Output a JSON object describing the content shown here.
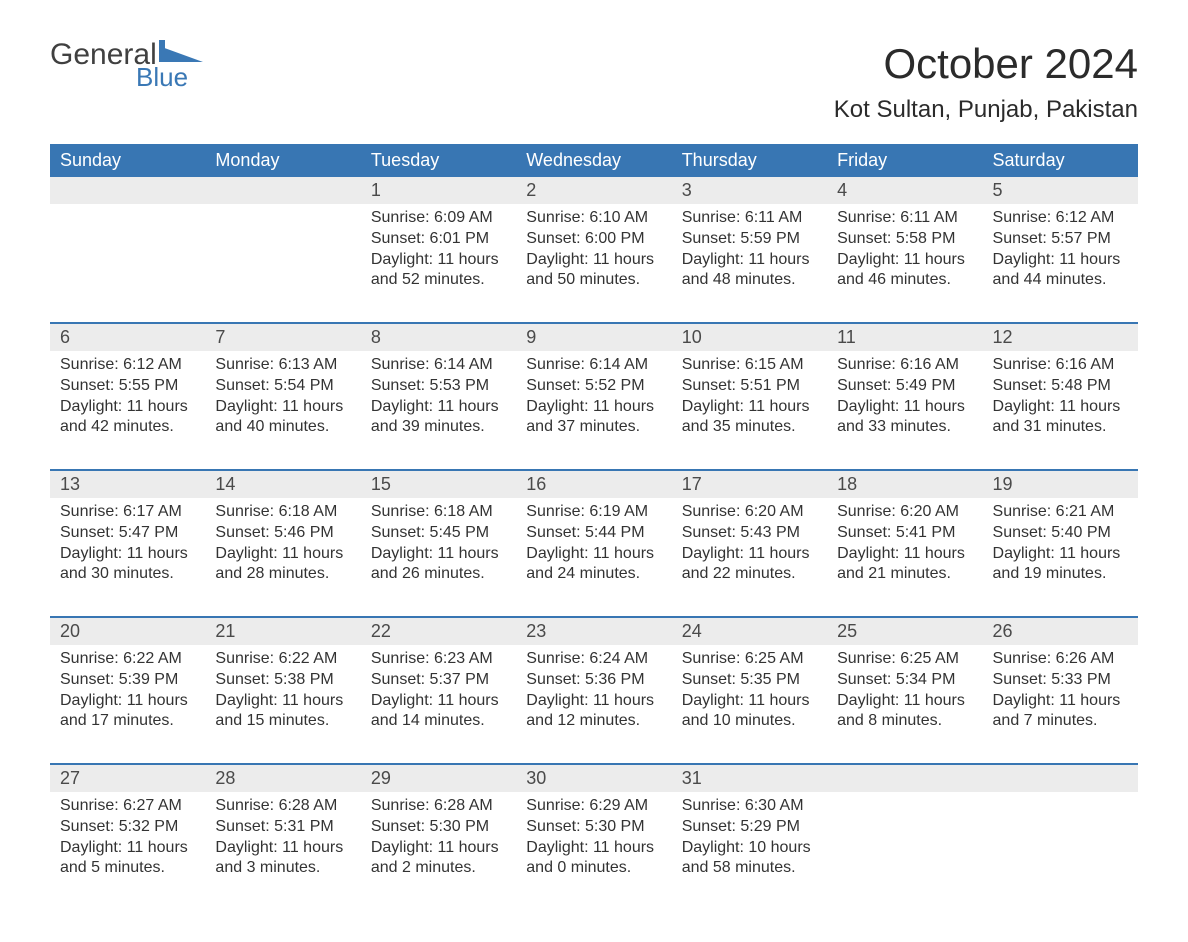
{
  "logo": {
    "text1": "General",
    "text2": "Blue",
    "icon_color": "#3a78b5"
  },
  "title": "October 2024",
  "location": "Kot Sultan, Punjab, Pakistan",
  "colors": {
    "header_bg": "#3876b3",
    "header_text": "#ffffff",
    "daynum_bg": "#ececec",
    "week_border": "#3876b3",
    "body_text": "#333333",
    "page_bg": "#ffffff"
  },
  "day_names": [
    "Sunday",
    "Monday",
    "Tuesday",
    "Wednesday",
    "Thursday",
    "Friday",
    "Saturday"
  ],
  "weeks": [
    [
      {
        "date": "",
        "sunrise": "",
        "sunset": "",
        "daylight1": "",
        "daylight2": ""
      },
      {
        "date": "",
        "sunrise": "",
        "sunset": "",
        "daylight1": "",
        "daylight2": ""
      },
      {
        "date": "1",
        "sunrise": "Sunrise: 6:09 AM",
        "sunset": "Sunset: 6:01 PM",
        "daylight1": "Daylight: 11 hours",
        "daylight2": "and 52 minutes."
      },
      {
        "date": "2",
        "sunrise": "Sunrise: 6:10 AM",
        "sunset": "Sunset: 6:00 PM",
        "daylight1": "Daylight: 11 hours",
        "daylight2": "and 50 minutes."
      },
      {
        "date": "3",
        "sunrise": "Sunrise: 6:11 AM",
        "sunset": "Sunset: 5:59 PM",
        "daylight1": "Daylight: 11 hours",
        "daylight2": "and 48 minutes."
      },
      {
        "date": "4",
        "sunrise": "Sunrise: 6:11 AM",
        "sunset": "Sunset: 5:58 PM",
        "daylight1": "Daylight: 11 hours",
        "daylight2": "and 46 minutes."
      },
      {
        "date": "5",
        "sunrise": "Sunrise: 6:12 AM",
        "sunset": "Sunset: 5:57 PM",
        "daylight1": "Daylight: 11 hours",
        "daylight2": "and 44 minutes."
      }
    ],
    [
      {
        "date": "6",
        "sunrise": "Sunrise: 6:12 AM",
        "sunset": "Sunset: 5:55 PM",
        "daylight1": "Daylight: 11 hours",
        "daylight2": "and 42 minutes."
      },
      {
        "date": "7",
        "sunrise": "Sunrise: 6:13 AM",
        "sunset": "Sunset: 5:54 PM",
        "daylight1": "Daylight: 11 hours",
        "daylight2": "and 40 minutes."
      },
      {
        "date": "8",
        "sunrise": "Sunrise: 6:14 AM",
        "sunset": "Sunset: 5:53 PM",
        "daylight1": "Daylight: 11 hours",
        "daylight2": "and 39 minutes."
      },
      {
        "date": "9",
        "sunrise": "Sunrise: 6:14 AM",
        "sunset": "Sunset: 5:52 PM",
        "daylight1": "Daylight: 11 hours",
        "daylight2": "and 37 minutes."
      },
      {
        "date": "10",
        "sunrise": "Sunrise: 6:15 AM",
        "sunset": "Sunset: 5:51 PM",
        "daylight1": "Daylight: 11 hours",
        "daylight2": "and 35 minutes."
      },
      {
        "date": "11",
        "sunrise": "Sunrise: 6:16 AM",
        "sunset": "Sunset: 5:49 PM",
        "daylight1": "Daylight: 11 hours",
        "daylight2": "and 33 minutes."
      },
      {
        "date": "12",
        "sunrise": "Sunrise: 6:16 AM",
        "sunset": "Sunset: 5:48 PM",
        "daylight1": "Daylight: 11 hours",
        "daylight2": "and 31 minutes."
      }
    ],
    [
      {
        "date": "13",
        "sunrise": "Sunrise: 6:17 AM",
        "sunset": "Sunset: 5:47 PM",
        "daylight1": "Daylight: 11 hours",
        "daylight2": "and 30 minutes."
      },
      {
        "date": "14",
        "sunrise": "Sunrise: 6:18 AM",
        "sunset": "Sunset: 5:46 PM",
        "daylight1": "Daylight: 11 hours",
        "daylight2": "and 28 minutes."
      },
      {
        "date": "15",
        "sunrise": "Sunrise: 6:18 AM",
        "sunset": "Sunset: 5:45 PM",
        "daylight1": "Daylight: 11 hours",
        "daylight2": "and 26 minutes."
      },
      {
        "date": "16",
        "sunrise": "Sunrise: 6:19 AM",
        "sunset": "Sunset: 5:44 PM",
        "daylight1": "Daylight: 11 hours",
        "daylight2": "and 24 minutes."
      },
      {
        "date": "17",
        "sunrise": "Sunrise: 6:20 AM",
        "sunset": "Sunset: 5:43 PM",
        "daylight1": "Daylight: 11 hours",
        "daylight2": "and 22 minutes."
      },
      {
        "date": "18",
        "sunrise": "Sunrise: 6:20 AM",
        "sunset": "Sunset: 5:41 PM",
        "daylight1": "Daylight: 11 hours",
        "daylight2": "and 21 minutes."
      },
      {
        "date": "19",
        "sunrise": "Sunrise: 6:21 AM",
        "sunset": "Sunset: 5:40 PM",
        "daylight1": "Daylight: 11 hours",
        "daylight2": "and 19 minutes."
      }
    ],
    [
      {
        "date": "20",
        "sunrise": "Sunrise: 6:22 AM",
        "sunset": "Sunset: 5:39 PM",
        "daylight1": "Daylight: 11 hours",
        "daylight2": "and 17 minutes."
      },
      {
        "date": "21",
        "sunrise": "Sunrise: 6:22 AM",
        "sunset": "Sunset: 5:38 PM",
        "daylight1": "Daylight: 11 hours",
        "daylight2": "and 15 minutes."
      },
      {
        "date": "22",
        "sunrise": "Sunrise: 6:23 AM",
        "sunset": "Sunset: 5:37 PM",
        "daylight1": "Daylight: 11 hours",
        "daylight2": "and 14 minutes."
      },
      {
        "date": "23",
        "sunrise": "Sunrise: 6:24 AM",
        "sunset": "Sunset: 5:36 PM",
        "daylight1": "Daylight: 11 hours",
        "daylight2": "and 12 minutes."
      },
      {
        "date": "24",
        "sunrise": "Sunrise: 6:25 AM",
        "sunset": "Sunset: 5:35 PM",
        "daylight1": "Daylight: 11 hours",
        "daylight2": "and 10 minutes."
      },
      {
        "date": "25",
        "sunrise": "Sunrise: 6:25 AM",
        "sunset": "Sunset: 5:34 PM",
        "daylight1": "Daylight: 11 hours",
        "daylight2": "and 8 minutes."
      },
      {
        "date": "26",
        "sunrise": "Sunrise: 6:26 AM",
        "sunset": "Sunset: 5:33 PM",
        "daylight1": "Daylight: 11 hours",
        "daylight2": "and 7 minutes."
      }
    ],
    [
      {
        "date": "27",
        "sunrise": "Sunrise: 6:27 AM",
        "sunset": "Sunset: 5:32 PM",
        "daylight1": "Daylight: 11 hours",
        "daylight2": "and 5 minutes."
      },
      {
        "date": "28",
        "sunrise": "Sunrise: 6:28 AM",
        "sunset": "Sunset: 5:31 PM",
        "daylight1": "Daylight: 11 hours",
        "daylight2": "and 3 minutes."
      },
      {
        "date": "29",
        "sunrise": "Sunrise: 6:28 AM",
        "sunset": "Sunset: 5:30 PM",
        "daylight1": "Daylight: 11 hours",
        "daylight2": "and 2 minutes."
      },
      {
        "date": "30",
        "sunrise": "Sunrise: 6:29 AM",
        "sunset": "Sunset: 5:30 PM",
        "daylight1": "Daylight: 11 hours",
        "daylight2": "and 0 minutes."
      },
      {
        "date": "31",
        "sunrise": "Sunrise: 6:30 AM",
        "sunset": "Sunset: 5:29 PM",
        "daylight1": "Daylight: 10 hours",
        "daylight2": "and 58 minutes."
      },
      {
        "date": "",
        "sunrise": "",
        "sunset": "",
        "daylight1": "",
        "daylight2": ""
      },
      {
        "date": "",
        "sunrise": "",
        "sunset": "",
        "daylight1": "",
        "daylight2": ""
      }
    ]
  ]
}
